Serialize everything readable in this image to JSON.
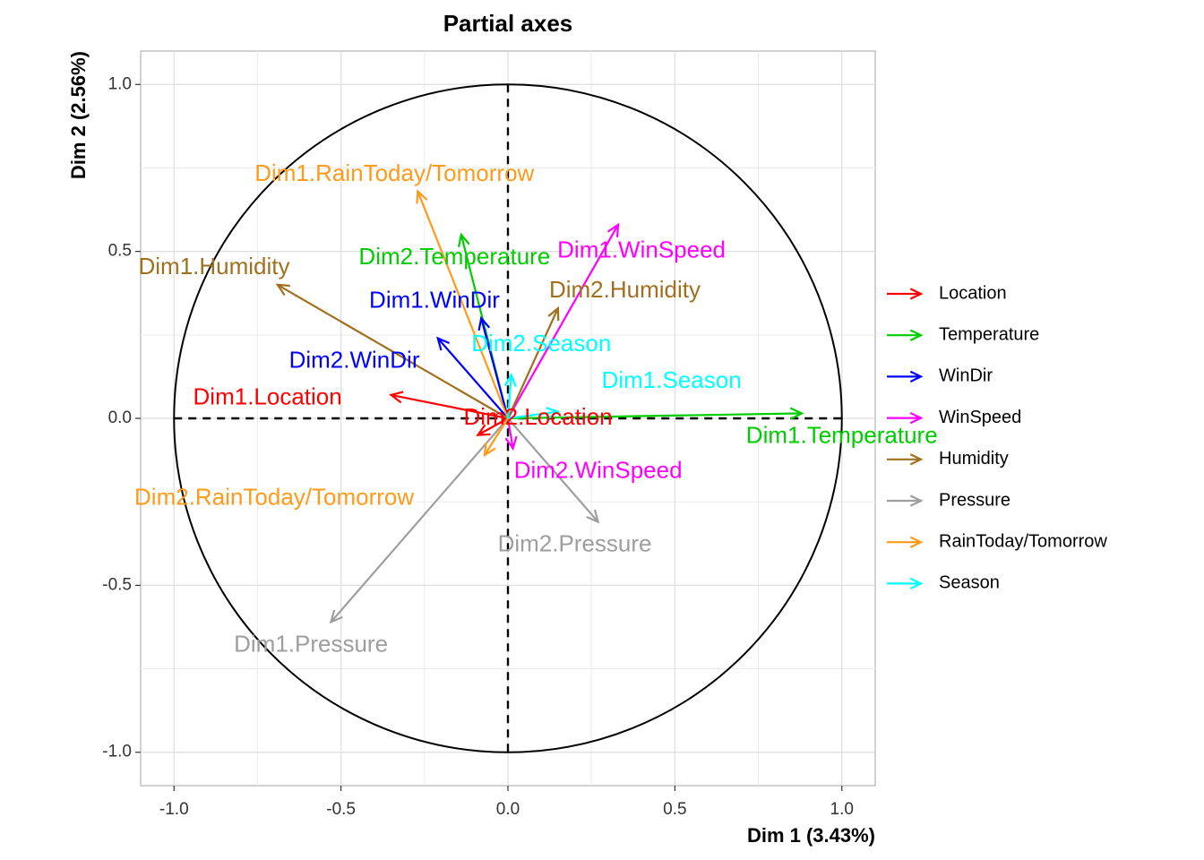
{
  "chart_data": {
    "type": "scatter",
    "subtype": "correlation-circle",
    "title": "Partial axes",
    "xlabel": "Dim 1 (3.43%)",
    "ylabel": "Dim 2 (2.56%)",
    "xlim": [
      -1.1,
      1.1
    ],
    "ylim": [
      -1.1,
      1.1
    ],
    "xticks": [
      -1.0,
      -0.5,
      0.0,
      0.5,
      1.0
    ],
    "yticks": [
      -1.0,
      -0.5,
      0.0,
      0.5,
      1.0
    ],
    "xtick_labels": [
      "-1.0",
      "-0.5",
      "0.0",
      "0.5",
      "1.0"
    ],
    "ytick_labels": [
      "-1.0",
      "-0.5",
      "0.0",
      "0.5",
      "1.0"
    ],
    "grid": true,
    "unit_circle": true,
    "legend_position": "right",
    "groups": [
      {
        "name": "Location",
        "color": "#FF0000"
      },
      {
        "name": "Temperature",
        "color": "#00CD00"
      },
      {
        "name": "WinDir",
        "color": "#0000FF"
      },
      {
        "name": "WinSpeed",
        "color": "#FF00FF"
      },
      {
        "name": "Humidity",
        "color": "#A0701E"
      },
      {
        "name": "Pressure",
        "color": "#9E9E9E"
      },
      {
        "name": "RainToday/Tomorrow",
        "color": "#FF9A1A"
      },
      {
        "name": "Season",
        "color": "#00FFFF"
      }
    ],
    "vectors": [
      {
        "label": "Dim1.Location",
        "group": "Location",
        "x": -0.35,
        "y": 0.07,
        "lx": -0.72,
        "ly": 0.06
      },
      {
        "label": "Dim2.Location",
        "group": "Location",
        "x": -0.09,
        "y": -0.05,
        "lx": 0.09,
        "ly": 0.0
      },
      {
        "label": "Dim1.Temperature",
        "group": "Temperature",
        "x": 0.88,
        "y": 0.015,
        "lx": 1.0,
        "ly": -0.055
      },
      {
        "label": "Dim2.Temperature",
        "group": "Temperature",
        "x": -0.14,
        "y": 0.55,
        "lx": -0.16,
        "ly": 0.48
      },
      {
        "label": "Dim1.WinDir",
        "group": "WinDir",
        "x": -0.08,
        "y": 0.3,
        "lx": -0.22,
        "ly": 0.35
      },
      {
        "label": "Dim2.WinDir",
        "group": "WinDir",
        "x": -0.21,
        "y": 0.24,
        "lx": -0.46,
        "ly": 0.17
      },
      {
        "label": "Dim1.WinSpeed",
        "group": "WinSpeed",
        "x": 0.33,
        "y": 0.58,
        "lx": 0.4,
        "ly": 0.5
      },
      {
        "label": "Dim2.WinSpeed",
        "group": "WinSpeed",
        "x": 0.015,
        "y": -0.09,
        "lx": 0.27,
        "ly": -0.16
      },
      {
        "label": "Dim1.Humidity",
        "group": "Humidity",
        "x": -0.69,
        "y": 0.4,
        "lx": -0.88,
        "ly": 0.45
      },
      {
        "label": "Dim2.Humidity",
        "group": "Humidity",
        "x": 0.15,
        "y": 0.33,
        "lx": 0.35,
        "ly": 0.38
      },
      {
        "label": "Dim1.Pressure",
        "group": "Pressure",
        "x": -0.53,
        "y": -0.61,
        "lx": -0.59,
        "ly": -0.68
      },
      {
        "label": "Dim2.Pressure",
        "group": "Pressure",
        "x": 0.27,
        "y": -0.31,
        "lx": 0.2,
        "ly": -0.38
      },
      {
        "label": "Dim1.RainToday/Tomorrow",
        "group": "RainToday/Tomorrow",
        "x": -0.27,
        "y": 0.68,
        "lx": -0.34,
        "ly": 0.73
      },
      {
        "label": "Dim2.RainToday/Tomorrow",
        "group": "RainToday/Tomorrow",
        "x": -0.07,
        "y": -0.11,
        "lx": -0.7,
        "ly": -0.24
      },
      {
        "label": "Dim1.Season",
        "group": "Season",
        "x": 0.15,
        "y": 0.02,
        "lx": 0.49,
        "ly": 0.11
      },
      {
        "label": "Dim2.Season",
        "group": "Season",
        "x": 0.01,
        "y": 0.13,
        "lx": 0.1,
        "ly": 0.22
      }
    ]
  }
}
